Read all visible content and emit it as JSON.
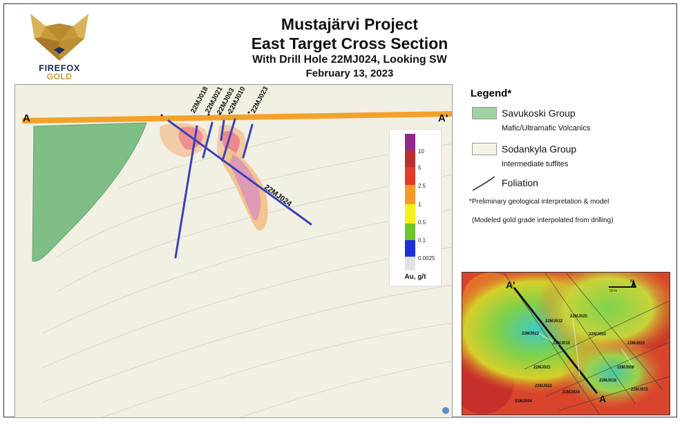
{
  "title": {
    "line1": "Mustajärvi Project",
    "line2": "East Target Cross Section",
    "line3": "With Drill Hole 22MJ024, Looking SW",
    "line4": "February 13, 2023"
  },
  "logo": {
    "line1": "FIREFOX",
    "line2": "GOLD",
    "colors": {
      "gold": "#c79a3a",
      "navy": "#1d2e5a"
    }
  },
  "section": {
    "point_a": "A",
    "point_a_prime": "A'",
    "drill_holes": [
      "22MJ018",
      "22MJ021",
      "22MJ003",
      "22MJ010",
      "22MJ023"
    ],
    "target_hole": "22MJ024",
    "colors": {
      "background": "#f1f0e3",
      "savukoski": "#7fbf87",
      "surface": "#f2a22a",
      "hole": "#3b3fbf"
    }
  },
  "color_scale": {
    "unit": "Au, g/t",
    "labels": [
      "10",
      "5",
      "2.5",
      "1",
      "0.5",
      "0.1",
      "0.0025"
    ],
    "colors": [
      "#8e2a8a",
      "#b8302e",
      "#e23b2b",
      "#f49a2a",
      "#f5ef1e",
      "#6fc42c",
      "#2030d8",
      "#e2e2e2"
    ]
  },
  "legend": {
    "title": "Legend*",
    "items": [
      {
        "name": "Savukoski Group",
        "desc": "Mafic/Ultramafic Volcanics",
        "color": "#9fd3a4"
      },
      {
        "name": "Sodankyla Group",
        "desc": "Intermediate tuffites",
        "color": "#f6f4e6"
      }
    ],
    "foliation": "Foliation",
    "note1": "*Preliminary geological interpretation & model",
    "note2": "(Modeled gold grade interpolated from drilling)"
  },
  "inset": {
    "point_a": "A",
    "point_a_prime": "A'",
    "north": "N",
    "holes": [
      "22MJ025",
      "22MJ012",
      "22MJ023",
      "22MJ003",
      "22MJ010",
      "22MJ020",
      "22MJ021",
      "22MJ006",
      "22MJ018",
      "22MJ022",
      "22MJ015",
      "22MJ024",
      "21MJ004"
    ],
    "scale": "50 m"
  }
}
